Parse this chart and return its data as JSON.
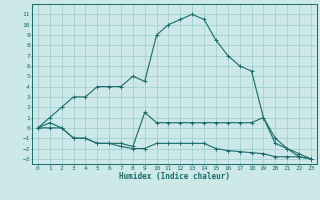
{
  "xlabel": "Humidex (Indice chaleur)",
  "ylabel": "",
  "bg_color": "#cce8e8",
  "grid_color": "#99cccc",
  "line_color": "#1a6b6b",
  "xlim": [
    -0.5,
    23.5
  ],
  "ylim": [
    -3.5,
    12
  ],
  "xticks": [
    0,
    1,
    2,
    3,
    4,
    5,
    6,
    7,
    8,
    9,
    10,
    11,
    12,
    13,
    14,
    15,
    16,
    17,
    18,
    19,
    20,
    21,
    22,
    23
  ],
  "yticks": [
    -3,
    -2,
    -1,
    0,
    1,
    2,
    3,
    4,
    5,
    6,
    7,
    8,
    9,
    10,
    11
  ],
  "line1_x": [
    0,
    1,
    2,
    3,
    4,
    5,
    6,
    7,
    8,
    9,
    10,
    11,
    12,
    13,
    14,
    15,
    16,
    17,
    18,
    19,
    20,
    21,
    22,
    23
  ],
  "line1_y": [
    0,
    1,
    2,
    3,
    3,
    4,
    4,
    4,
    5,
    4.5,
    9,
    10,
    10.5,
    11,
    10.5,
    8.5,
    7,
    6,
    5.5,
    1,
    -1.5,
    -2,
    -2.5,
    -3
  ],
  "line2_x": [
    0,
    1,
    2,
    3,
    4,
    5,
    6,
    7,
    8,
    9,
    10,
    11,
    12,
    13,
    14,
    15,
    16,
    17,
    18,
    19,
    20,
    21,
    22,
    23
  ],
  "line2_y": [
    0,
    0.5,
    0,
    -1,
    -1,
    -1.5,
    -1.5,
    -1.5,
    -1.8,
    1.5,
    0.5,
    0.5,
    0.5,
    0.5,
    0.5,
    0.5,
    0.5,
    0.5,
    0.5,
    1,
    -1,
    -2,
    -2.8,
    -3
  ],
  "line3_x": [
    0,
    1,
    2,
    3,
    4,
    5,
    6,
    7,
    8,
    9,
    10,
    11,
    12,
    13,
    14,
    15,
    16,
    17,
    18,
    19,
    20,
    21,
    22,
    23
  ],
  "line3_y": [
    0,
    0,
    0,
    -1,
    -1,
    -1.5,
    -1.5,
    -1.8,
    -2,
    -2,
    -1.5,
    -1.5,
    -1.5,
    -1.5,
    -1.5,
    -2,
    -2.2,
    -2.3,
    -2.4,
    -2.5,
    -2.8,
    -2.8,
    -2.8,
    -3
  ]
}
